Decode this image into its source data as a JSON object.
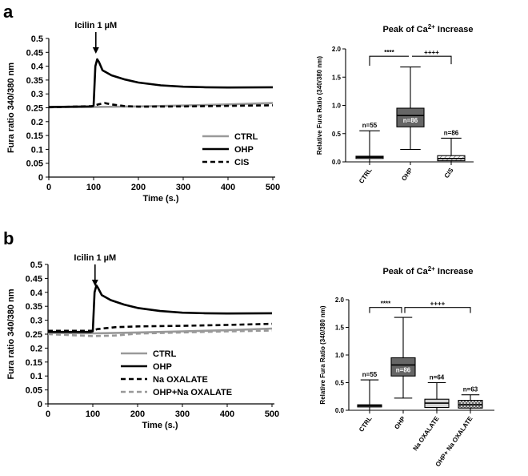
{
  "panels": {
    "a": {
      "letter": "a"
    },
    "b": {
      "letter": "b"
    }
  },
  "colors": {
    "ctrl": "#999999",
    "ohp": "#000000",
    "cis": "#000000",
    "na_oxalate": "#000000",
    "ohp_na_oxalate": "#999999",
    "box_ohp": "#666666"
  },
  "chart_data": [
    {
      "id": "a-trace",
      "type": "line",
      "title": "",
      "annotation": "Icilin 1 µM",
      "annotation_x": 105,
      "xlabel": "Time (s.)",
      "ylabel": "Fura ratio 340/380 nm",
      "xlim": [
        0,
        500
      ],
      "ylim": [
        0,
        0.5
      ],
      "xticks": [
        "0",
        "100",
        "200",
        "300",
        "400",
        "500"
      ],
      "yticks": [
        "0",
        "0.05",
        "0.1",
        "0.15",
        "0.2",
        "0.25",
        "0.3",
        "0.35",
        "0.4",
        "0.45",
        "0.5"
      ],
      "legend": "bottom-right",
      "series": [
        {
          "name": "CTRL",
          "style": "solid-gray",
          "points": [
            [
              0,
              0.252
            ],
            [
              100,
              0.253
            ],
            [
              200,
              0.255
            ],
            [
              300,
              0.258
            ],
            [
              400,
              0.262
            ],
            [
              500,
              0.267
            ]
          ]
        },
        {
          "name": "OHP",
          "style": "solid-black",
          "points": [
            [
              0,
              0.253
            ],
            [
              95,
              0.255
            ],
            [
              100,
              0.258
            ],
            [
              104,
              0.4
            ],
            [
              108,
              0.425
            ],
            [
              112,
              0.415
            ],
            [
              120,
              0.385
            ],
            [
              140,
              0.367
            ],
            [
              170,
              0.352
            ],
            [
              200,
              0.341
            ],
            [
              250,
              0.331
            ],
            [
              300,
              0.326
            ],
            [
              350,
              0.324
            ],
            [
              400,
              0.323
            ],
            [
              500,
              0.324
            ]
          ]
        },
        {
          "name": "CIS",
          "style": "dashed-black",
          "points": [
            [
              0,
              0.252
            ],
            [
              100,
              0.256
            ],
            [
              110,
              0.262
            ],
            [
              125,
              0.267
            ],
            [
              140,
              0.262
            ],
            [
              170,
              0.256
            ],
            [
              200,
              0.254
            ],
            [
              300,
              0.255
            ],
            [
              400,
              0.257
            ],
            [
              500,
              0.259
            ]
          ]
        }
      ]
    },
    {
      "id": "a-box",
      "type": "boxplot",
      "title_main": "Peak of Ca",
      "title_sup": "2+",
      "title_end": " Increase",
      "xlabel": "",
      "ylabel": "Relative Fura Ratio (340/380 nm)",
      "ylim": [
        0,
        2.0
      ],
      "yticks": [
        "0.0",
        "0.5",
        "1.0",
        "1.5",
        "2.0"
      ],
      "categories": [
        "CTRL",
        "OHP",
        "CIS"
      ],
      "boxes": [
        {
          "category": "CTRL",
          "min": 0.0,
          "q1": 0.06,
          "median": 0.08,
          "q3": 0.1,
          "max": 0.55,
          "n": "n=55"
        },
        {
          "category": "OHP",
          "min": 0.22,
          "q1": 0.62,
          "median": 0.82,
          "q3": 0.95,
          "max": 1.68,
          "n": "n=86"
        },
        {
          "category": "CIS",
          "min": 0.0,
          "q1": 0.02,
          "median": 0.06,
          "q3": 0.11,
          "max": 0.42,
          "n": "n=86"
        }
      ],
      "brackets": [
        {
          "from": "CTRL",
          "to": "OHP",
          "label": "****"
        },
        {
          "from": "OHP",
          "to": "CIS",
          "label": "++++"
        }
      ]
    },
    {
      "id": "b-trace",
      "type": "line",
      "title": "",
      "annotation": "Icilin 1 µM",
      "annotation_x": 105,
      "xlabel": "Time (s.)",
      "ylabel": "Fura ratio 340/380 nm",
      "xlim": [
        0,
        500
      ],
      "ylim": [
        0,
        0.5
      ],
      "xticks": [
        "0",
        "100",
        "200",
        "300",
        "400",
        "500"
      ],
      "yticks": [
        "0",
        "0.05",
        "0.1",
        "0.15",
        "0.2",
        "0.25",
        "0.3",
        "0.35",
        "0.4",
        "0.45",
        "0.5"
      ],
      "legend": "bottom-center",
      "series": [
        {
          "name": "CTRL",
          "style": "solid-gray",
          "points": [
            [
              0,
              0.255
            ],
            [
              100,
              0.253
            ],
            [
              200,
              0.256
            ],
            [
              300,
              0.26
            ],
            [
              400,
              0.264
            ],
            [
              500,
              0.27
            ]
          ]
        },
        {
          "name": "OHP",
          "style": "solid-black",
          "points": [
            [
              0,
              0.258
            ],
            [
              95,
              0.258
            ],
            [
              100,
              0.26
            ],
            [
              104,
              0.4
            ],
            [
              108,
              0.425
            ],
            [
              112,
              0.415
            ],
            [
              120,
              0.39
            ],
            [
              140,
              0.372
            ],
            [
              170,
              0.356
            ],
            [
              200,
              0.344
            ],
            [
              250,
              0.333
            ],
            [
              300,
              0.327
            ],
            [
              350,
              0.325
            ],
            [
              400,
              0.324
            ],
            [
              500,
              0.325
            ]
          ]
        },
        {
          "name": "Na   OXALATE",
          "style": "dashed-black",
          "points": [
            [
              0,
              0.262
            ],
            [
              100,
              0.262
            ],
            [
              110,
              0.268
            ],
            [
              150,
              0.275
            ],
            [
              200,
              0.278
            ],
            [
              300,
              0.28
            ],
            [
              400,
              0.283
            ],
            [
              500,
              0.287
            ]
          ]
        },
        {
          "name": "OHP+Na   OXALATE",
          "style": "dashed-gray",
          "points": [
            [
              0,
              0.25
            ],
            [
              100,
              0.243
            ],
            [
              150,
              0.245
            ],
            [
              200,
              0.252
            ],
            [
              300,
              0.256
            ],
            [
              400,
              0.26
            ],
            [
              500,
              0.263
            ]
          ]
        }
      ]
    },
    {
      "id": "b-box",
      "type": "boxplot",
      "title_main": "Peak of Ca",
      "title_sup": "2+",
      "title_end": " Increase",
      "xlabel": "",
      "ylabel": "Relative Fura Ratio (340/380 nm)",
      "ylim": [
        0,
        2.0
      ],
      "yticks": [
        "0.0",
        "0.5",
        "1.0",
        "1.5",
        "2.0"
      ],
      "categories": [
        "CTRL",
        "OHP",
        "Na OXALATE",
        "OHP+ Na OXALATE"
      ],
      "boxes": [
        {
          "category": "CTRL",
          "min": 0.0,
          "q1": 0.06,
          "median": 0.08,
          "q3": 0.1,
          "max": 0.55,
          "n": "n=55"
        },
        {
          "category": "OHP",
          "min": 0.22,
          "q1": 0.62,
          "median": 0.82,
          "q3": 0.95,
          "max": 1.68,
          "n": "n=86"
        },
        {
          "category": "Na OXALATE",
          "min": 0.0,
          "q1": 0.05,
          "median": 0.13,
          "q3": 0.2,
          "max": 0.5,
          "n": "n=64"
        },
        {
          "category": "OHP+ Na OXALATE",
          "min": 0.0,
          "q1": 0.04,
          "median": 0.1,
          "q3": 0.18,
          "max": 0.28,
          "n": "n=63"
        }
      ],
      "brackets": [
        {
          "from": "CTRL",
          "to": "OHP",
          "label": "****"
        },
        {
          "from": "OHP",
          "to": "OHP+ Na OXALATE",
          "label": "++++"
        }
      ]
    }
  ]
}
